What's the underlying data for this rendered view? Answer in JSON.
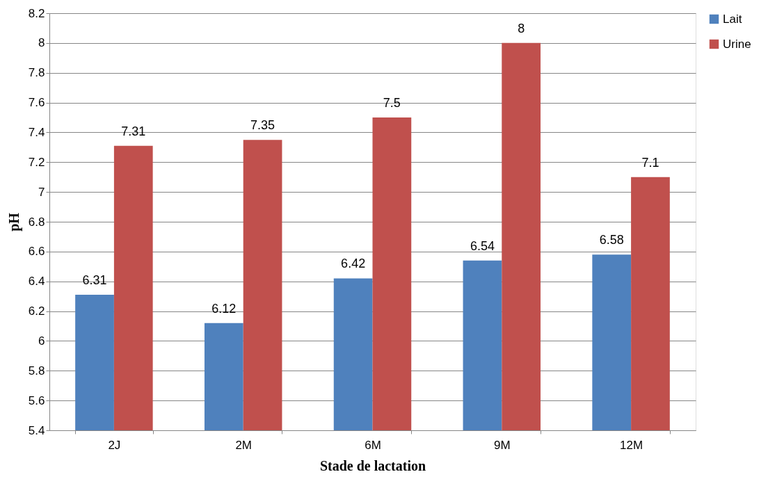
{
  "chart_data": {
    "type": "bar",
    "xlabel": "Stade de lactation",
    "ylabel": "pH",
    "categories": [
      "2J",
      "2M",
      "6M",
      "9M",
      "12M"
    ],
    "series": [
      {
        "name": "Lait",
        "color": "#4f81bd",
        "values": [
          6.31,
          6.12,
          6.42,
          6.54,
          6.58
        ]
      },
      {
        "name": "Urine",
        "color": "#c0504d",
        "values": [
          7.31,
          7.35,
          7.5,
          8,
          7.1
        ]
      }
    ],
    "ylim": [
      5.4,
      8.2
    ],
    "yticks": [
      5.4,
      5.6,
      5.8,
      6,
      6.2,
      6.4,
      6.6,
      6.8,
      7,
      7.2,
      7.4,
      7.6,
      7.8,
      8,
      8.2
    ],
    "grid": "y",
    "legend": "right",
    "data_labels": true
  }
}
